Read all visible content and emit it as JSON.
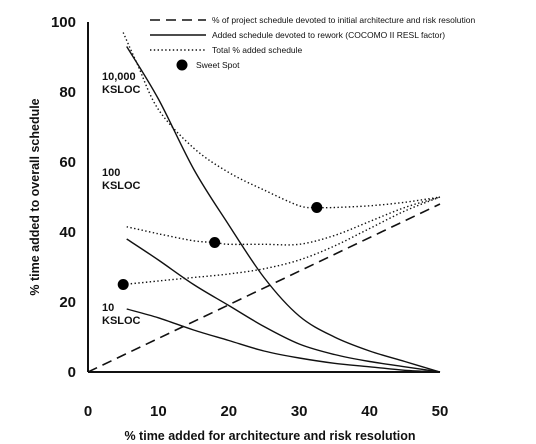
{
  "chart_data": {
    "type": "line",
    "title": "",
    "xlabel": "% time added for architecture and risk resolution",
    "ylabel": "% time added to overall schedule",
    "xlim": [
      0,
      50
    ],
    "ylim": [
      0,
      100
    ],
    "x_ticks": [
      "0",
      "10",
      "20",
      "30",
      "40",
      "50"
    ],
    "y_ticks": [
      "0",
      "20",
      "40",
      "60",
      "80",
      "100"
    ],
    "grid": false,
    "legend_position": "top-right",
    "legend": [
      {
        "style": "dashed",
        "label": "% of project schedule devoted to initial architecture and risk resolution"
      },
      {
        "style": "solid",
        "label": "Added schedule devoted to rework (COCOMO II RESL factor)"
      },
      {
        "style": "dotted",
        "label": "Total % added schedule"
      },
      {
        "style": "marker",
        "label": "Sweet Spot"
      }
    ],
    "size_labels": [
      {
        "lines": [
          "10,000",
          "KSLOC"
        ]
      },
      {
        "lines": [
          "100",
          "KSLOC"
        ]
      },
      {
        "lines": [
          "10",
          "KSLOC"
        ]
      }
    ],
    "series": [
      {
        "style": "dashed",
        "x": [
          0,
          50
        ],
        "y": [
          0,
          48
        ]
      },
      {
        "style": "solid",
        "size": "10,000 KSLOC",
        "x": [
          5.5,
          10,
          15,
          20,
          25,
          30,
          35,
          40,
          45,
          50
        ],
        "y": [
          93,
          78,
          58,
          42,
          27,
          16,
          10,
          6,
          3,
          0
        ]
      },
      {
        "style": "solid",
        "size": "100 KSLOC",
        "x": [
          5.5,
          10,
          15,
          20,
          25,
          30,
          35,
          40,
          45,
          50
        ],
        "y": [
          38,
          32,
          25,
          19,
          13,
          8,
          5,
          3,
          1.5,
          0
        ]
      },
      {
        "style": "solid",
        "size": "10 KSLOC",
        "x": [
          5.5,
          10,
          15,
          20,
          25,
          30,
          35,
          40,
          45,
          50
        ],
        "y": [
          18,
          15.5,
          12,
          9,
          6,
          4,
          2.5,
          1.5,
          0.5,
          0
        ]
      },
      {
        "style": "dotted",
        "size": "10,000 KSLOC",
        "x": [
          5,
          7,
          10,
          15,
          20,
          25,
          30,
          32.5,
          35,
          40,
          45,
          50
        ],
        "y": [
          97,
          88,
          75,
          64,
          57,
          52,
          47.5,
          47,
          47,
          47.5,
          48.5,
          50
        ]
      },
      {
        "style": "dotted",
        "size": "100 KSLOC",
        "x": [
          5.5,
          10,
          15,
          18,
          20,
          25,
          30,
          35,
          40,
          45,
          50
        ],
        "y": [
          41.5,
          39.5,
          37.5,
          37,
          36.5,
          36.5,
          36.5,
          39,
          43,
          47,
          50
        ]
      },
      {
        "style": "dotted",
        "size": "10 KSLOC",
        "x": [
          5,
          10,
          15,
          20,
          25,
          30,
          35,
          40,
          45,
          50
        ],
        "y": [
          25,
          26,
          27,
          28,
          29.5,
          32,
          36,
          41,
          46,
          50
        ]
      }
    ],
    "sweet_spots": [
      {
        "x": 32.5,
        "y": 47
      },
      {
        "x": 18,
        "y": 37
      },
      {
        "x": 5,
        "y": 25
      }
    ]
  }
}
